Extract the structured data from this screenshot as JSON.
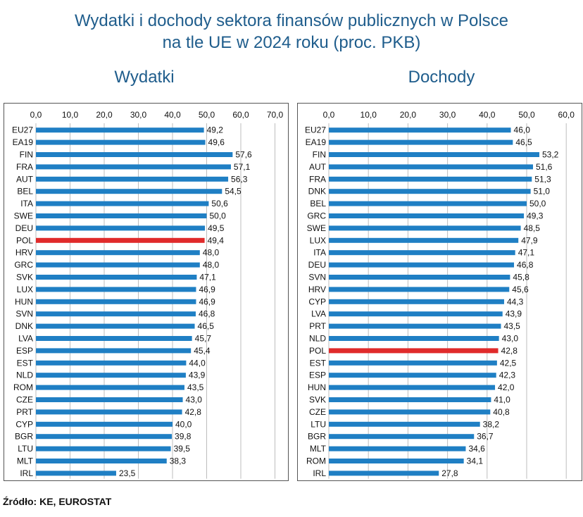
{
  "title": {
    "line1": "Wydatki i dochody sektora finansów publicznych w Polsce",
    "line2": "na tle UE w 2024 roku (proc. PKB)"
  },
  "source": "Źródło: KE, EUROSTAT",
  "colors": {
    "bar": "#1f7fc4",
    "highlight": "#e02a2a",
    "title": "#1f5d8c"
  },
  "chart_data": [
    {
      "type": "bar",
      "orientation": "horizontal",
      "subtitle": "Wydatki",
      "xlim": [
        0,
        70
      ],
      "ticks": [
        "0,0",
        "10,0",
        "20,0",
        "30,0",
        "40,0",
        "50,0",
        "60,0",
        "70,0"
      ],
      "highlight": "POL",
      "categories": [
        "EU27",
        "EA19",
        "FIN",
        "FRA",
        "AUT",
        "BEL",
        "ITA",
        "SWE",
        "DEU",
        "POL",
        "HRV",
        "GRC",
        "SVK",
        "LUX",
        "HUN",
        "SVN",
        "DNK",
        "LVA",
        "ESP",
        "EST",
        "NLD",
        "ROM",
        "CZE",
        "PRT",
        "CYP",
        "BGR",
        "LTU",
        "MLT",
        "IRL"
      ],
      "values": [
        49.2,
        49.6,
        57.6,
        57.1,
        56.3,
        54.5,
        50.6,
        50.0,
        49.5,
        49.4,
        48.0,
        48.0,
        47.1,
        46.9,
        46.9,
        46.8,
        46.5,
        45.7,
        45.4,
        44.0,
        43.9,
        43.5,
        43.0,
        42.8,
        40.0,
        39.8,
        39.5,
        38.3,
        23.5
      ],
      "labels": [
        "49,2",
        "49,6",
        "57,6",
        "57,1",
        "56,3",
        "54,5",
        "50,6",
        "50,0",
        "49,5",
        "49,4",
        "48,0",
        "48,0",
        "47,1",
        "46,9",
        "46,9",
        "46,8",
        "46,5",
        "45,7",
        "45,4",
        "44,0",
        "43,9",
        "43,5",
        "43,0",
        "42,8",
        "40,0",
        "39,8",
        "39,5",
        "38,3",
        "23,5"
      ]
    },
    {
      "type": "bar",
      "orientation": "horizontal",
      "subtitle": "Dochody",
      "xlim": [
        0,
        60
      ],
      "ticks": [
        "0,0",
        "10,0",
        "20,0",
        "30,0",
        "40,0",
        "50,0",
        "60,0"
      ],
      "highlight": "POL",
      "categories": [
        "EU27",
        "EA19",
        "FIN",
        "AUT",
        "FRA",
        "DNK",
        "BEL",
        "GRC",
        "SWE",
        "LUX",
        "ITA",
        "DEU",
        "SVN",
        "HRV",
        "CYP",
        "LVA",
        "PRT",
        "NLD",
        "POL",
        "EST",
        "ESP",
        "HUN",
        "SVK",
        "CZE",
        "LTU",
        "BGR",
        "MLT",
        "ROM",
        "IRL"
      ],
      "values": [
        46.0,
        46.5,
        53.2,
        51.6,
        51.3,
        51.0,
        50.0,
        49.3,
        48.5,
        47.9,
        47.1,
        46.8,
        45.8,
        45.6,
        44.3,
        43.9,
        43.5,
        43.0,
        42.8,
        42.5,
        42.3,
        42.0,
        41.0,
        40.8,
        38.2,
        36.7,
        34.6,
        34.1,
        27.8
      ],
      "labels": [
        "46,0",
        "46,5",
        "53,2",
        "51,6",
        "51,3",
        "51,0",
        "50,0",
        "49,3",
        "48,5",
        "47,9",
        "47,1",
        "46,8",
        "45,8",
        "45,6",
        "44,3",
        "43,9",
        "43,5",
        "43,0",
        "42,8",
        "42,5",
        "42,3",
        "42,0",
        "41,0",
        "40,8",
        "38,2",
        "36,7",
        "34,6",
        "34,1",
        "27,8"
      ]
    }
  ]
}
